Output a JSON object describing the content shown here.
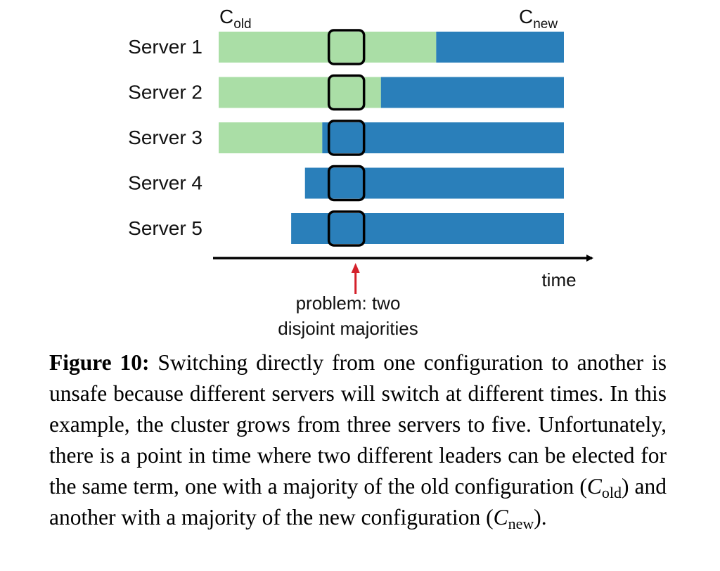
{
  "figure": {
    "c_old": {
      "base": "C",
      "sub": "old"
    },
    "c_new": {
      "base": "C",
      "sub": "new"
    },
    "servers": [
      {
        "label": "Server 1",
        "old_end": 0.63
      },
      {
        "label": "Server 2",
        "old_end": 0.47
      },
      {
        "label": "Server 3",
        "old_end": 0.3
      },
      {
        "label": "Server 4",
        "new_start": 0.25
      },
      {
        "label": "Server 5",
        "new_start": 0.21
      }
    ],
    "time_label": "time",
    "problem_time": 0.37,
    "problem_label_line1": "problem: two",
    "problem_label_line2": "disjoint majorities",
    "colors": {
      "old_config": "#aadea6",
      "new_config": "#2a7fba",
      "problem_arrow": "#d4212b",
      "axis": "#000000"
    }
  },
  "caption": {
    "label": "Figure 10:",
    "part1": " Switching directly from one configuration to another is unsafe because different servers will switch at different times. In this example, the cluster grows from three servers to five. Unfortunately, there is a point in time where two different leaders can be elected for the same term, one with a majority of the old configuration (",
    "c_old_base": "C",
    "c_old_sub": "old",
    "part2": ") and another with a majority of the new configuration (",
    "c_new_base": "C",
    "c_new_sub": "new",
    "part3": ")."
  }
}
